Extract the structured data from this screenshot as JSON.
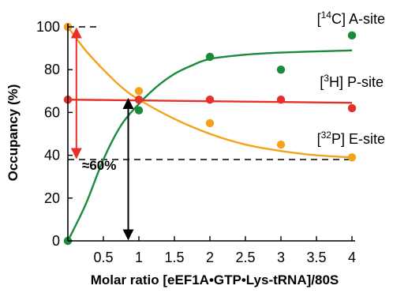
{
  "chart_data": {
    "type": "scatter",
    "xlabel": "Molar ratio [eEF1A•GTP•Lys-tRNA]/80S",
    "ylabel": "Occupancy (%)",
    "xlim": [
      0,
      4.1
    ],
    "ylim": [
      0,
      105
    ],
    "x_ticks": [
      "0.5",
      "1",
      "1.5",
      "2",
      "2.5",
      "3",
      "3.5",
      "4"
    ],
    "y_ticks": [
      "0",
      "20",
      "40",
      "60",
      "80",
      "100"
    ],
    "grid": false,
    "series": [
      {
        "name": "[14C] A-site",
        "name_parts": [
          "[",
          "14",
          "C] A-site"
        ],
        "color": "#1a8a3c",
        "x": [
          0,
          1,
          2,
          3,
          4
        ],
        "y": [
          0,
          61,
          86,
          80,
          96
        ],
        "fit": [
          [
            0,
            0
          ],
          [
            0.25,
            17
          ],
          [
            0.5,
            38
          ],
          [
            0.75,
            54
          ],
          [
            1,
            64
          ],
          [
            1.25,
            72
          ],
          [
            1.5,
            78
          ],
          [
            1.75,
            82
          ],
          [
            2,
            85
          ],
          [
            2.5,
            87
          ],
          [
            3,
            88
          ],
          [
            4,
            89
          ]
        ]
      },
      {
        "name": "[3H] P-site",
        "name_parts": [
          "[",
          "3",
          "H] P-site"
        ],
        "color": "#e8302a",
        "x": [
          0,
          1,
          2,
          3,
          4
        ],
        "y": [
          66,
          66,
          66,
          66,
          62
        ],
        "fit": [
          [
            0,
            66
          ],
          [
            4,
            64.5
          ]
        ]
      },
      {
        "name": "[32P] E-site",
        "name_parts": [
          "[",
          "32",
          "P] E-site"
        ],
        "color": "#f5a21b",
        "x": [
          0,
          1,
          2,
          3,
          4
        ],
        "y": [
          100,
          70,
          55,
          45,
          39
        ],
        "fit": [
          [
            0,
            100
          ],
          [
            0.25,
            89
          ],
          [
            0.5,
            80
          ],
          [
            0.75,
            72
          ],
          [
            1,
            66
          ],
          [
            1.5,
            57
          ],
          [
            2,
            50
          ],
          [
            2.5,
            45
          ],
          [
            3,
            42
          ],
          [
            3.5,
            40
          ],
          [
            4,
            39
          ]
        ]
      }
    ],
    "reference_lines": [
      {
        "kind": "horizontal",
        "y": 100,
        "x_from": 0,
        "x_to": 0.45
      },
      {
        "kind": "horizontal",
        "y": 38,
        "x_from": 0,
        "x_to": 4
      }
    ],
    "annotations": [
      {
        "text": "≈60%",
        "color": "#e8302a",
        "x": 0.12,
        "y_from": 100,
        "y_to": 38
      },
      {
        "text": "",
        "color": "#000000",
        "x": 0.85,
        "y_from": 67,
        "y_to": 0
      }
    ]
  }
}
